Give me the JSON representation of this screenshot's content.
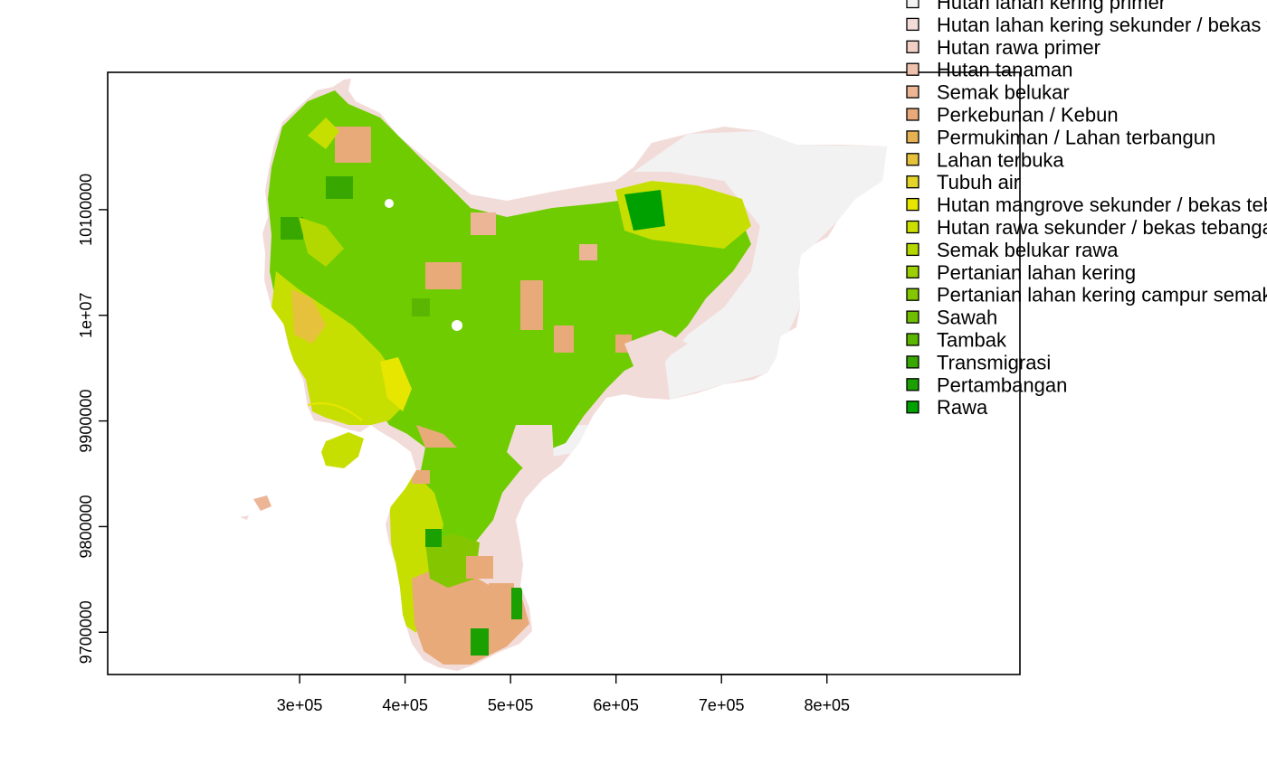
{
  "map": {
    "x_ticks": [
      "3e+05",
      "4e+05",
      "5e+05",
      "6e+05",
      "7e+05",
      "8e+05"
    ],
    "x_tick_values": [
      300000,
      400000,
      500000,
      600000,
      700000,
      800000
    ],
    "y_ticks": [
      "9700000",
      "9800000",
      "9900000",
      "1e+07",
      "10100000"
    ],
    "y_tick_values": [
      9700000,
      9800000,
      9900000,
      10000000,
      10100000
    ],
    "x_range": [
      118000,
      983000
    ],
    "y_range": [
      9660000,
      10230000
    ]
  },
  "legend": {
    "items": [
      {
        "label": "Hutan lahan kering primer",
        "color": "#f2f2f2"
      },
      {
        "label": "Hutan lahan kering sekunder / bekas tebangan",
        "color": "#f2dcd9"
      },
      {
        "label": "Hutan rawa primer",
        "color": "#f1cfc4"
      },
      {
        "label": "Hutan tanaman",
        "color": "#efc2ad"
      },
      {
        "label": "Semak belukar",
        "color": "#ecb595"
      },
      {
        "label": "Perkebunan / Kebun",
        "color": "#e9aa79"
      },
      {
        "label": "Permukiman / Lahan terbangun",
        "color": "#e6b153"
      },
      {
        "label": "Lahan terbuka",
        "color": "#e6c23c"
      },
      {
        "label": "Tubuh air",
        "color": "#e3d42a"
      },
      {
        "label": "Hutan mangrove sekunder / bekas tebangan",
        "color": "#e6e600"
      },
      {
        "label": "Hutan rawa sekunder / bekas tebangan",
        "color": "#cbe000"
      },
      {
        "label": "Semak belukar rawa",
        "color": "#b3d800"
      },
      {
        "label": "Pertanian lahan kering",
        "color": "#9ccf00"
      },
      {
        "label": "Pertanian lahan kering  campur semak",
        "color": "#84c700"
      },
      {
        "label": "Sawah",
        "color": "#6fbf00"
      },
      {
        "label": "Tambak",
        "color": "#5ab600"
      },
      {
        "label": "Transmigrasi",
        "color": "#38a800"
      },
      {
        "label": "Pertambangan",
        "color": "#1aa000"
      },
      {
        "label": "Rawa",
        "color": "#00a000"
      }
    ]
  }
}
